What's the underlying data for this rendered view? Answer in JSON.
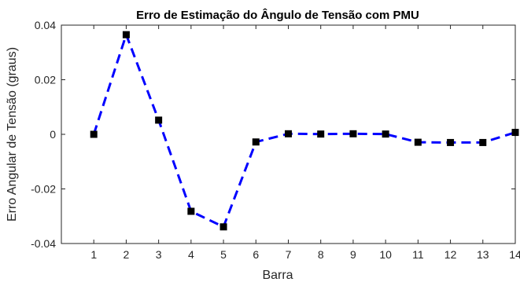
{
  "chart_data": {
    "type": "line",
    "title": "Erro de Estimação do Ângulo de Tensão com PMU",
    "xlabel": "Barra",
    "ylabel": "Erro Angular de Tensão (graus)",
    "x": [
      1,
      2,
      3,
      4,
      5,
      6,
      7,
      8,
      9,
      10,
      11,
      12,
      13,
      14
    ],
    "xticks": [
      "1",
      "2",
      "3",
      "4",
      "5",
      "6",
      "7",
      "8",
      "9",
      "10",
      "11",
      "12",
      "13",
      "14"
    ],
    "yticks": [
      "-0.04",
      "-0.02",
      "0",
      "0.02",
      "0.04"
    ],
    "ytick_values": [
      -0.04,
      -0.02,
      0,
      0.02,
      0.04
    ],
    "xlim": [
      0,
      14
    ],
    "ylim": [
      -0.04,
      0.04
    ],
    "grid": false,
    "series": [
      {
        "style": "dashed-line",
        "color": "#0000FF",
        "values": [
          0.0,
          0.0365,
          0.0052,
          -0.0282,
          -0.0339,
          -0.0028,
          0.0002,
          0.0001,
          0.0002,
          0.0001,
          -0.0029,
          -0.003,
          -0.003,
          0.0007
        ]
      },
      {
        "style": "square-markers",
        "color": "#000000",
        "values": [
          0.0,
          0.0365,
          0.0052,
          -0.0282,
          -0.0339,
          -0.0028,
          0.0002,
          0.0001,
          0.0002,
          0.0001,
          -0.0029,
          -0.003,
          -0.003,
          0.0007
        ]
      }
    ]
  }
}
